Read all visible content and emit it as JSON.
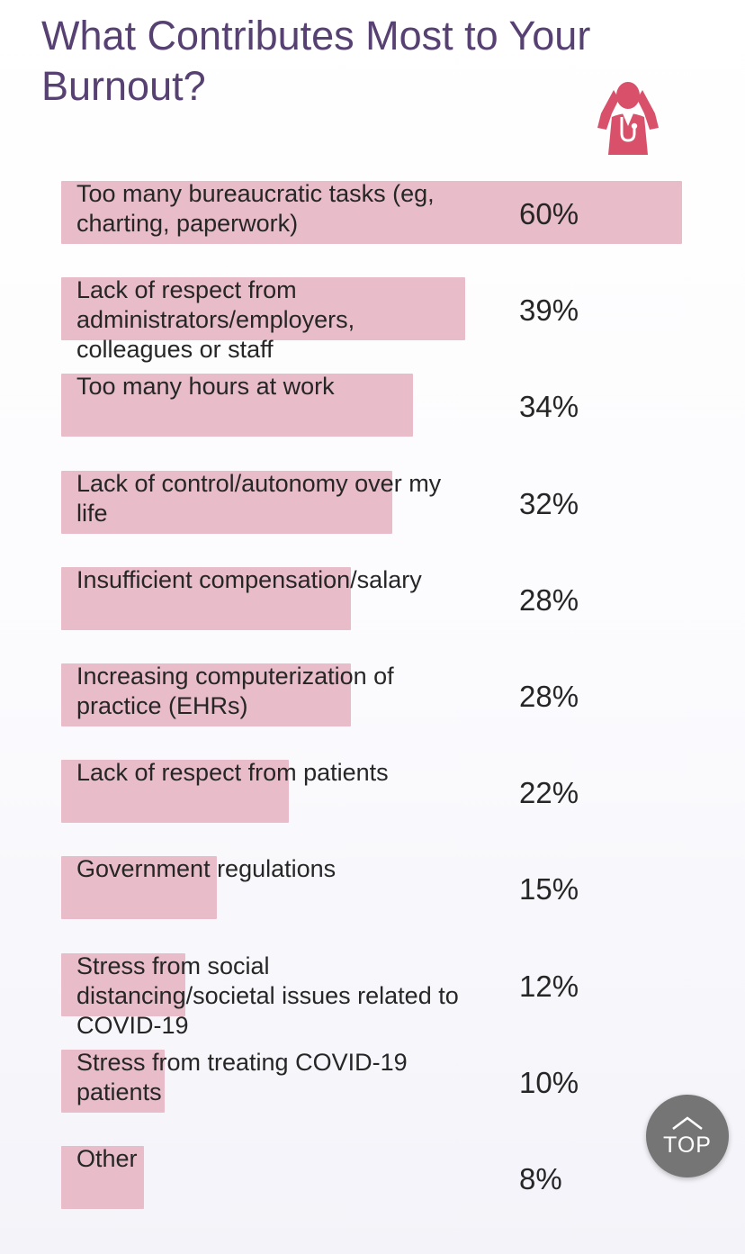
{
  "header": {
    "title": "What Contributes Most to Your Burnout?",
    "icon": "stressed-doctor-icon"
  },
  "colors": {
    "title": "#574172",
    "bar": "#e8bcc9",
    "icon": "#d9506a",
    "text": "#262626",
    "top_button": "#757575"
  },
  "chart_data": {
    "type": "bar",
    "orientation": "horizontal",
    "title": "What Contributes Most to Your Burnout?",
    "xlim": [
      0,
      60
    ],
    "categories": [
      "Too many bureaucratic tasks (eg, charting, paperwork)",
      "Lack of respect from administrators/employers, colleagues or staff",
      "Too many hours at work",
      "Lack of control/autonomy over my life",
      "Insufficient compensation/salary",
      "Increasing computerization of practice (EHRs)",
      "Lack of respect from patients",
      "Government regulations",
      "Stress from social distancing/societal issues related to COVID-19",
      "Stress from treating COVID-19 patients",
      "Other"
    ],
    "values": [
      60,
      39,
      34,
      32,
      28,
      28,
      22,
      15,
      12,
      10,
      8
    ],
    "value_labels": [
      "60%",
      "39%",
      "34%",
      "32%",
      "28%",
      "28%",
      "22%",
      "15%",
      "12%",
      "10%",
      "8%"
    ]
  },
  "top_button": {
    "label": "TOP",
    "icon": "chevron-up-icon"
  }
}
